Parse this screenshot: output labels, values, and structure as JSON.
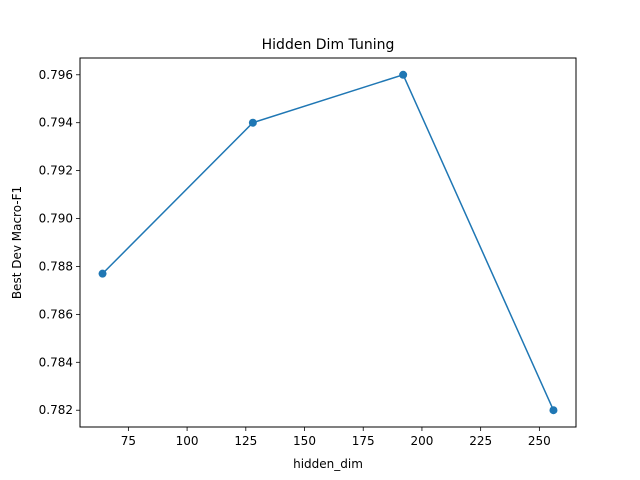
{
  "chart_data": {
    "type": "line",
    "title": "Hidden Dim Tuning",
    "xlabel": "hidden_dim",
    "ylabel": "Best Dev Macro-F1",
    "xlim": [
      54.4,
      265.6
    ],
    "ylim": [
      0.7813,
      0.7967
    ],
    "x_ticks": [
      75,
      100,
      125,
      150,
      175,
      200,
      225,
      250
    ],
    "y_ticks": [
      0.782,
      0.784,
      0.786,
      0.788,
      0.79,
      0.792,
      0.794,
      0.796
    ],
    "y_tick_decimals": 3,
    "grid": false,
    "series": [
      {
        "x": [
          64,
          128,
          192,
          256
        ],
        "values": [
          0.7877,
          0.794,
          0.796,
          0.782
        ],
        "color": "#1f77b4",
        "marker": "circle"
      }
    ]
  }
}
